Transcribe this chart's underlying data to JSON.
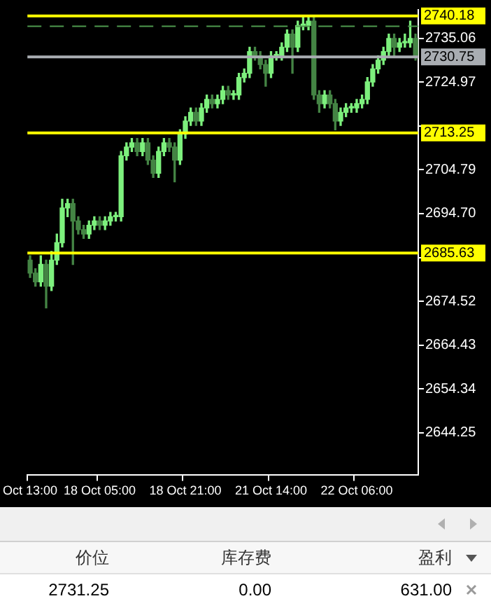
{
  "chart_data": {
    "type": "candlestick",
    "colors": [
      "#448444",
      "#448444",
      "#7df07d",
      "#448444",
      "#7df07d",
      "#7df07d",
      "#7df07d",
      "#7df07d",
      "#448444",
      "#448444",
      "#448444",
      "#7df07d",
      "#7df07d",
      "#448444",
      "#7df07d",
      "#7df07d",
      "#7df07d",
      "#7df07d",
      "#7df07d",
      "#7df07d",
      "#448444",
      "#7df07d",
      "#448444",
      "#448444",
      "#7df07d",
      "#7df07d",
      "#448444",
      "#448444",
      "#7df07d",
      "#7df07d",
      "#7df07d",
      "#448444",
      "#7df07d",
      "#7df07d",
      "#448444",
      "#7df07d",
      "#7df07d",
      "#448444",
      "#7df07d",
      "#7df07d",
      "#7df07d",
      "#7df07d",
      "#448444",
      "#448444",
      "#448444",
      "#7df07d",
      "#7df07d",
      "#7df07d",
      "#7df07d",
      "#448444",
      "#7df07d",
      "#7df07d",
      "#7df07d",
      "#448444",
      "#448444",
      "#7df07d",
      "#448444",
      "#448444",
      "#7df07d",
      "#7df07d",
      "#7df07d",
      "#7df07d",
      "#7df07d",
      "#7df07d",
      "#7df07d",
      "#7df07d",
      "#7df07d",
      "#7df07d",
      "#448444",
      "#7df07d",
      "#7df07d",
      "#7df07d",
      "#448444"
    ],
    "categories": [
      "Oct 13:00",
      null,
      null,
      null,
      null,
      null,
      null,
      null,
      null,
      null,
      null,
      null,
      null,
      "18 Oct 05:00",
      null,
      null,
      null,
      null,
      null,
      null,
      null,
      null,
      null,
      null,
      null,
      null,
      null,
      null,
      null,
      "18 Oct 21:00",
      null,
      null,
      null,
      null,
      null,
      null,
      null,
      null,
      null,
      null,
      null,
      null,
      null,
      null,
      null,
      "21 Oct 14:00",
      null,
      null,
      null,
      null,
      null,
      null,
      null,
      null,
      null,
      null,
      null,
      null,
      null,
      null,
      null,
      "22 Oct 06:00",
      null,
      null,
      null,
      null,
      null,
      null,
      null,
      null,
      null,
      null,
      null
    ],
    "ohlc": [
      [
        2684,
        2685,
        2680,
        2681
      ],
      [
        2681,
        2682,
        2678,
        2679
      ],
      [
        2679,
        2685,
        2678,
        2683
      ],
      [
        2683,
        2684,
        2673,
        2678
      ],
      [
        2678,
        2686,
        2677,
        2684
      ],
      [
        2684,
        2690,
        2683,
        2688
      ],
      [
        2688,
        2698,
        2687,
        2696
      ],
      [
        2696,
        2698,
        2694,
        2697
      ],
      [
        2697,
        2698,
        2683,
        2693
      ],
      [
        2693,
        2694,
        2690,
        2691
      ],
      [
        2691,
        2692,
        2689,
        2690
      ],
      [
        2690,
        2693,
        2689,
        2692
      ],
      [
        2692,
        2694,
        2691,
        2693
      ],
      [
        2693,
        2694,
        2691,
        2692
      ],
      [
        2692,
        2694,
        2691,
        2693
      ],
      [
        2693,
        2695,
        2692,
        2694
      ],
      [
        2694,
        2695,
        2693,
        2694
      ],
      [
        2694,
        2709,
        2693,
        2708
      ],
      [
        2708,
        2711,
        2707,
        2710
      ],
      [
        2710,
        2712,
        2709,
        2711
      ],
      [
        2711,
        2712,
        2708,
        2709
      ],
      [
        2709,
        2712,
        2708,
        2711
      ],
      [
        2711,
        2712,
        2706,
        2707
      ],
      [
        2707,
        2708,
        2703,
        2704
      ],
      [
        2704,
        2710,
        2703,
        2709
      ],
      [
        2709,
        2712,
        2708,
        2711
      ],
      [
        2711,
        2712,
        2709,
        2710
      ],
      [
        2710,
        2711,
        2702,
        2707
      ],
      [
        2707,
        2714,
        2706,
        2713
      ],
      [
        2713,
        2717,
        2712,
        2716
      ],
      [
        2716,
        2719,
        2715,
        2718
      ],
      [
        2718,
        2719,
        2715,
        2716
      ],
      [
        2716,
        2720,
        2715,
        2719
      ],
      [
        2719,
        2722,
        2718,
        2721
      ],
      [
        2721,
        2722,
        2719,
        2720
      ],
      [
        2720,
        2722,
        2719,
        2721
      ],
      [
        2721,
        2724,
        2720,
        2723
      ],
      [
        2723,
        2724,
        2721,
        2722
      ],
      [
        2722,
        2723,
        2721,
        2722
      ],
      [
        2722,
        2727,
        2721,
        2726
      ],
      [
        2726,
        2728,
        2725,
        2727
      ],
      [
        2727,
        2733,
        2726,
        2732
      ],
      [
        2732,
        2733,
        2730,
        2731
      ],
      [
        2731,
        2732,
        2728,
        2729
      ],
      [
        2729,
        2730,
        2724,
        2727
      ],
      [
        2727,
        2732,
        2726,
        2731
      ],
      [
        2731,
        2732,
        2730,
        2731
      ],
      [
        2731,
        2734,
        2730,
        2733
      ],
      [
        2733,
        2737,
        2732,
        2736
      ],
      [
        2736,
        2737,
        2727,
        2733
      ],
      [
        2733,
        2739,
        2732,
        2738
      ],
      [
        2738,
        2740.2,
        2737,
        2738
      ],
      [
        2738,
        2740,
        2737,
        2739
      ],
      [
        2739,
        2740,
        2721,
        2722
      ],
      [
        2722,
        2723,
        2718,
        2720
      ],
      [
        2720,
        2723,
        2719,
        2722
      ],
      [
        2722,
        2723,
        2719,
        2720
      ],
      [
        2720,
        2721,
        2714,
        2716
      ],
      [
        2716,
        2719,
        2715,
        2718
      ],
      [
        2718,
        2720,
        2717,
        2719
      ],
      [
        2719,
        2720,
        2718,
        2719
      ],
      [
        2719,
        2721,
        2718,
        2720
      ],
      [
        2720,
        2722,
        2719,
        2721
      ],
      [
        2721,
        2726,
        2720,
        2725
      ],
      [
        2725,
        2729,
        2724,
        2728
      ],
      [
        2728,
        2731,
        2727,
        2730
      ],
      [
        2730,
        2733,
        2729,
        2732
      ],
      [
        2732,
        2736,
        2731,
        2735
      ],
      [
        2735,
        2736,
        2731,
        2733
      ],
      [
        2733,
        2735,
        2732,
        2734
      ],
      [
        2734,
        2736,
        2733,
        2734
      ],
      [
        2734,
        2739,
        2733,
        2735
      ],
      [
        2735,
        2736,
        2730,
        2731
      ]
    ],
    "ylim": [
      2634.5,
      2741.6
    ],
    "yticks": [
      {
        "value": 2644.25,
        "label": "2644.25"
      },
      {
        "value": 2654.34,
        "label": "2654.34"
      },
      {
        "value": 2664.43,
        "label": "2664.43"
      },
      {
        "value": 2674.52,
        "label": "2674.52"
      },
      {
        "value": 2684.61,
        "label": null
      },
      {
        "value": 2694.7,
        "label": "2694.70"
      },
      {
        "value": 2704.79,
        "label": "2704.79"
      },
      {
        "value": 2714.88,
        "label": null
      },
      {
        "value": 2724.97,
        "label": "2724.97"
      },
      {
        "value": 2735.06,
        "label": "2735.06"
      }
    ],
    "ref_lines": [
      {
        "axis": "y",
        "value": 2740.18,
        "label": "2740.18",
        "color": "#ffff00"
      },
      {
        "axis": "y",
        "value": 2737.8,
        "color": "#4f9a4f",
        "line_style": "dashed"
      },
      {
        "axis": "y",
        "value": 2730.75,
        "label": "2730.75",
        "color": "#a9adb2"
      },
      {
        "axis": "y",
        "value": 2713.25,
        "label": "2713.25",
        "color": "#ffff00"
      },
      {
        "axis": "y",
        "value": 2685.63,
        "label": "2685.63",
        "color": "#ffff00"
      }
    ],
    "annotations": [
      "价位",
      "库存费",
      "盈利",
      "2731.25",
      "0.00",
      "631.00"
    ],
    "grid": false,
    "legend": false
  }
}
